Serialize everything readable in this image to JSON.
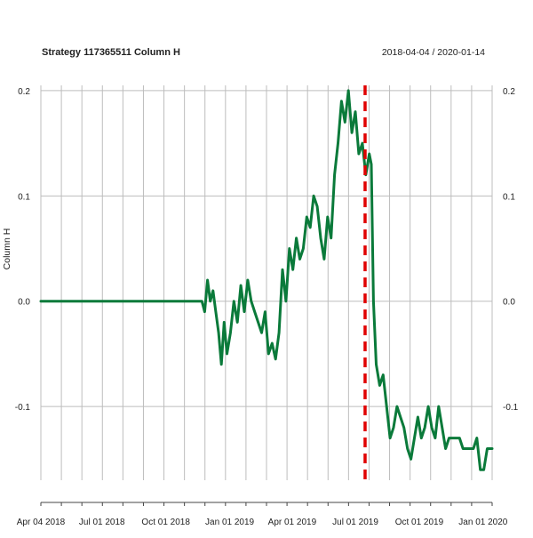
{
  "chart_data": {
    "type": "line",
    "title": "Strategy 117365511 Column H",
    "date_range": "2018-04-04 / 2020-01-14",
    "ylabel": "Column H",
    "xlabel": "",
    "xlim": [
      "2018-04-04",
      "2020-01-14"
    ],
    "ylim": [
      -0.17,
      0.205
    ],
    "x_tick_labels": [
      "Apr 04 2018",
      "Jul 01 2018",
      "Oct 01 2018",
      "Jan 01 2019",
      "Apr 01 2019",
      "Jul 01 2019",
      "Oct 01 2019",
      "Jan 01 2020"
    ],
    "x_tick_dates": [
      "2018-04-04",
      "2018-07-01",
      "2018-10-01",
      "2019-01-01",
      "2019-04-01",
      "2019-07-01",
      "2019-10-01",
      "2020-01-01"
    ],
    "y_ticks": [
      -0.1,
      0.0,
      0.1,
      0.2
    ],
    "y_tick_labels": [
      "-0.1",
      "0.0",
      "0.1",
      "0.2"
    ],
    "grid": "vertical",
    "vline": {
      "date": "2019-07-15",
      "color": "#e00000",
      "style": "dashed"
    },
    "series": [
      {
        "color": "#0a7a3a",
        "x": [
          "2018-04-04",
          "2018-11-22",
          "2018-11-26",
          "2018-11-30",
          "2018-12-04",
          "2018-12-08",
          "2018-12-12",
          "2018-12-16",
          "2018-12-20",
          "2018-12-24",
          "2018-12-28",
          "2019-01-02",
          "2019-01-07",
          "2019-01-12",
          "2019-01-17",
          "2019-01-22",
          "2019-01-27",
          "2019-02-01",
          "2019-02-06",
          "2019-02-11",
          "2019-02-16",
          "2019-02-21",
          "2019-02-26",
          "2019-03-03",
          "2019-03-08",
          "2019-03-13",
          "2019-03-18",
          "2019-03-23",
          "2019-03-28",
          "2019-04-02",
          "2019-04-07",
          "2019-04-12",
          "2019-04-17",
          "2019-04-22",
          "2019-04-27",
          "2019-05-02",
          "2019-05-07",
          "2019-05-12",
          "2019-05-17",
          "2019-05-22",
          "2019-05-27",
          "2019-06-01",
          "2019-06-06",
          "2019-06-11",
          "2019-06-16",
          "2019-06-21",
          "2019-06-26",
          "2019-07-01",
          "2019-07-06",
          "2019-07-11",
          "2019-07-16",
          "2019-07-21",
          "2019-07-24",
          "2019-07-27",
          "2019-07-31",
          "2019-08-05",
          "2019-08-10",
          "2019-08-15",
          "2019-08-20",
          "2019-08-25",
          "2019-08-30",
          "2019-09-04",
          "2019-09-09",
          "2019-09-14",
          "2019-09-19",
          "2019-09-24",
          "2019-09-29",
          "2019-10-04",
          "2019-10-09",
          "2019-10-14",
          "2019-10-19",
          "2019-10-24",
          "2019-10-29",
          "2019-11-03",
          "2019-11-08",
          "2019-11-13",
          "2019-11-18",
          "2019-11-23",
          "2019-11-28",
          "2019-12-03",
          "2019-12-08",
          "2019-12-13",
          "2019-12-18",
          "2019-12-23",
          "2019-12-28",
          "2020-01-02",
          "2020-01-07",
          "2020-01-14"
        ],
        "values": [
          0.0,
          0.0,
          -0.01,
          0.02,
          0.0,
          0.01,
          -0.01,
          -0.03,
          -0.06,
          -0.02,
          -0.05,
          -0.03,
          0.0,
          -0.02,
          0.015,
          -0.01,
          0.02,
          0.0,
          -0.01,
          -0.02,
          -0.03,
          -0.01,
          -0.05,
          -0.04,
          -0.055,
          -0.03,
          0.03,
          0.0,
          0.05,
          0.03,
          0.06,
          0.04,
          0.05,
          0.08,
          0.07,
          0.1,
          0.09,
          0.06,
          0.04,
          0.08,
          0.06,
          0.12,
          0.15,
          0.19,
          0.17,
          0.2,
          0.16,
          0.18,
          0.14,
          0.15,
          0.12,
          0.14,
          0.13,
          0.0,
          -0.06,
          -0.08,
          -0.07,
          -0.1,
          -0.13,
          -0.12,
          -0.1,
          -0.11,
          -0.12,
          -0.14,
          -0.15,
          -0.13,
          -0.11,
          -0.13,
          -0.12,
          -0.1,
          -0.12,
          -0.13,
          -0.1,
          -0.12,
          -0.14,
          -0.13,
          -0.13,
          -0.13,
          -0.13,
          -0.14,
          -0.14,
          -0.14,
          -0.14,
          -0.13,
          -0.16,
          -0.16,
          -0.14,
          -0.14
        ]
      }
    ]
  }
}
